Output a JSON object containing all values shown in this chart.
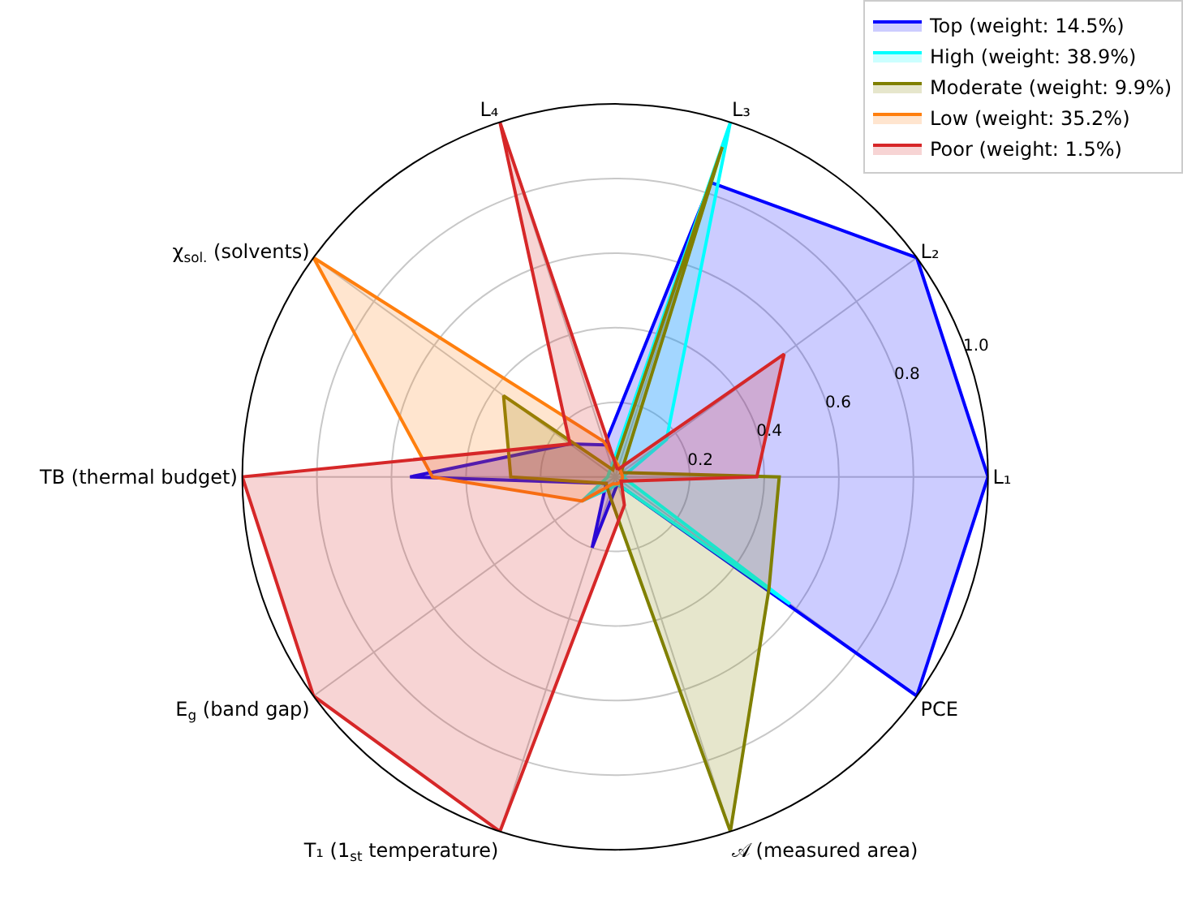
{
  "chart_data": {
    "type": "radar",
    "categories": [
      "L₃",
      "L₂",
      "L₁",
      "PCE",
      "𝒜 (measured area)",
      "T₁ (1$_{st}$ temperature)",
      "E$_{g}$ (band gap)",
      "TB (thermal budget)",
      "χ$_{sol.}$ (solvents)",
      "L₄"
    ],
    "series": [
      {
        "name": "Top (weight: 14.5%)",
        "color": "#0000ff",
        "values": [
          0.83,
          1.0,
          1.0,
          1.0,
          0.02,
          0.2,
          0.03,
          0.55,
          0.15,
          0.09
        ]
      },
      {
        "name": "High (weight: 38.9%)",
        "color": "#00ffff",
        "values": [
          1.0,
          0.17,
          0.02,
          0.58,
          0.02,
          0.03,
          0.11,
          0.02,
          0.02,
          0.03
        ]
      },
      {
        "name": "Moderate (weight: 9.9%)",
        "color": "#808000",
        "values": [
          0.93,
          0.02,
          0.44,
          0.51,
          1.0,
          0.05,
          0.03,
          0.28,
          0.37,
          0.02
        ]
      },
      {
        "name": "Low (weight: 35.2%)",
        "color": "#ff7f0e",
        "values": [
          0.03,
          0.02,
          0.02,
          0.02,
          0.02,
          0.02,
          0.11,
          0.49,
          1.0,
          0.1
        ]
      },
      {
        "name": "Poor (weight: 1.5%)",
        "color": "#d62728",
        "values": [
          0.02,
          0.56,
          0.38,
          0.02,
          0.08,
          1.0,
          1.0,
          1.0,
          0.15,
          1.0
        ]
      }
    ],
    "ylim": [
      0,
      1.0
    ],
    "yticks": [
      {
        "value": 0.2,
        "label": "0.2"
      },
      {
        "value": 0.4,
        "label": "0.4"
      },
      {
        "value": 0.6,
        "label": "0.6"
      },
      {
        "value": 0.8,
        "label": "0.8"
      },
      {
        "value": 1.0,
        "label": "1.0"
      }
    ],
    "grid": true,
    "legend": "top right"
  }
}
